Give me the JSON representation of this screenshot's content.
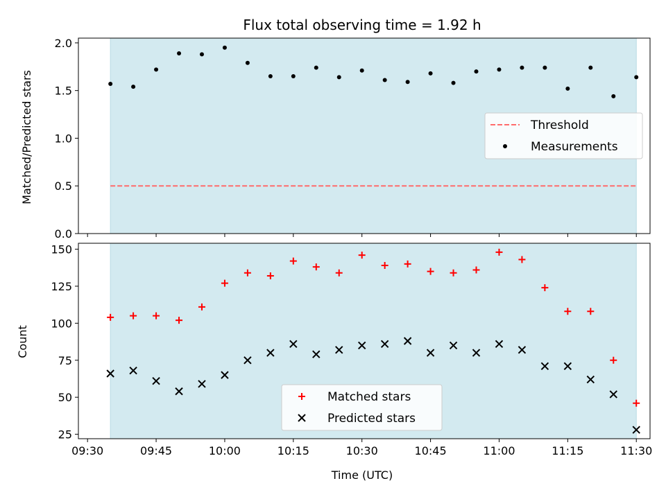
{
  "chart_data": {
    "title": "Flux total observing time = 1.92 h",
    "shade_color": "#d3eaf0",
    "panels": [
      {
        "type": "scatter",
        "ylabel": "Matched/Predicted stars",
        "ylim": [
          0,
          2.05
        ],
        "yticks": [
          0.0,
          0.5,
          1.0,
          1.5,
          2.0
        ],
        "ytick_labels": [
          "0.0",
          "0.5",
          "1.0",
          "1.5",
          "2.0"
        ],
        "legend_position": "center-right",
        "threshold": {
          "name": "Threshold",
          "value": 0.5,
          "x_start": "09:35",
          "x_end": "11:30",
          "color": "#ff6b6b"
        },
        "series": [
          {
            "name": "Measurements",
            "marker": "dot",
            "color": "#000000",
            "x": [
              "09:35",
              "09:40",
              "09:45",
              "09:50",
              "09:55",
              "10:00",
              "10:05",
              "10:10",
              "10:15",
              "10:20",
              "10:25",
              "10:30",
              "10:35",
              "10:40",
              "10:45",
              "10:50",
              "10:55",
              "11:00",
              "11:05",
              "11:10",
              "11:15",
              "11:20",
              "11:25",
              "11:30"
            ],
            "values": [
              1.57,
              1.54,
              1.72,
              1.89,
              1.88,
              1.95,
              1.79,
              1.65,
              1.65,
              1.74,
              1.64,
              1.71,
              1.61,
              1.59,
              1.68,
              1.58,
              1.7,
              1.72,
              1.74,
              1.74,
              1.52,
              1.74,
              1.44,
              1.64
            ]
          }
        ]
      },
      {
        "type": "scatter",
        "ylabel": "Count",
        "ylim": [
          22,
          154
        ],
        "yticks": [
          25,
          50,
          75,
          100,
          125,
          150
        ],
        "ytick_labels": [
          "25",
          "50",
          "75",
          "100",
          "125",
          "150"
        ],
        "legend_position": "lower-center",
        "series": [
          {
            "name": "Matched stars",
            "marker": "plus",
            "color": "#ff0000",
            "x": [
              "09:35",
              "09:40",
              "09:45",
              "09:50",
              "09:55",
              "10:00",
              "10:05",
              "10:10",
              "10:15",
              "10:20",
              "10:25",
              "10:30",
              "10:35",
              "10:40",
              "10:45",
              "10:50",
              "10:55",
              "11:00",
              "11:05",
              "11:10",
              "11:15",
              "11:20",
              "11:25",
              "11:30"
            ],
            "values": [
              104,
              105,
              105,
              102,
              111,
              127,
              134,
              132,
              142,
              138,
              134,
              146,
              139,
              140,
              135,
              134,
              136,
              148,
              143,
              124,
              108,
              108,
              75,
              46
            ]
          },
          {
            "name": "Predicted stars",
            "marker": "x",
            "color": "#000000",
            "x": [
              "09:35",
              "09:40",
              "09:45",
              "09:50",
              "09:55",
              "10:00",
              "10:05",
              "10:10",
              "10:15",
              "10:20",
              "10:25",
              "10:30",
              "10:35",
              "10:40",
              "10:45",
              "10:50",
              "10:55",
              "11:00",
              "11:05",
              "11:10",
              "11:15",
              "11:20",
              "11:25",
              "11:30"
            ],
            "values": [
              66,
              68,
              61,
              54,
              59,
              65,
              75,
              80,
              86,
              79,
              82,
              85,
              86,
              88,
              80,
              85,
              80,
              86,
              82,
              71,
              71,
              62,
              52,
              28
            ]
          }
        ]
      }
    ],
    "xaxis": {
      "label": "Time (UTC)",
      "range": [
        "09:28",
        "11:33"
      ],
      "ticks": [
        "09:30",
        "09:45",
        "10:00",
        "10:15",
        "10:30",
        "10:45",
        "11:00",
        "11:15",
        "11:30"
      ],
      "shade": [
        "09:35",
        "11:30"
      ]
    }
  }
}
